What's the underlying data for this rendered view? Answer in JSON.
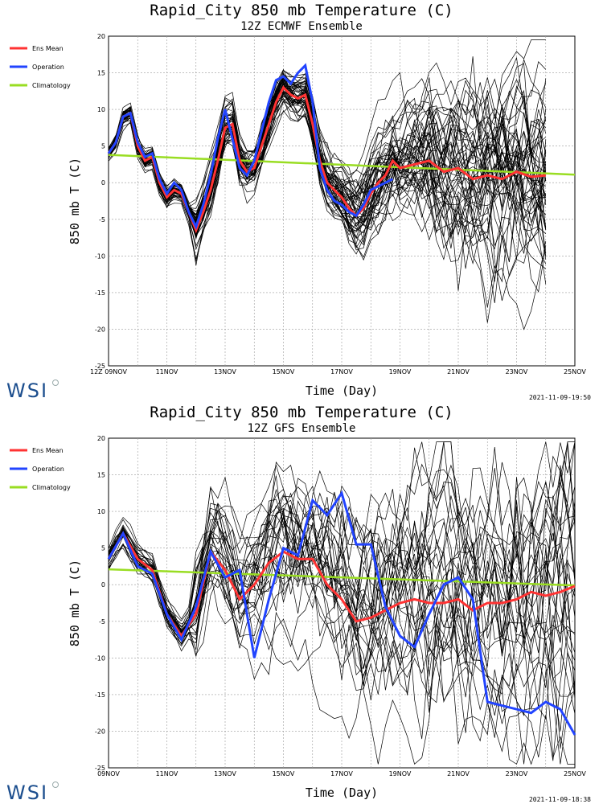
{
  "branding": {
    "logo_text": "WSI",
    "logo_color": "#1c4e8e"
  },
  "chart_data": [
    {
      "type": "line",
      "title": "Rapid_City 850 mb Temperature (C)",
      "subtitle": "12Z ECMWF Ensemble",
      "xlabel": "Time (Day)",
      "ylabel": "850 mb T (C)",
      "timestamp": "2021-11-09-19:50",
      "ylim": [
        -25,
        20
      ],
      "yticks": [
        20,
        15,
        10,
        5,
        0,
        -5,
        -10,
        -15,
        -20,
        -25
      ],
      "xlim_days": [
        0,
        16
      ],
      "xtick_labels": [
        "12Z 09NOV",
        "11NOV",
        "13NOV",
        "15NOV",
        "17NOV",
        "19NOV",
        "21NOV",
        "23NOV",
        "25NOV"
      ],
      "grid": true,
      "legend_position": "left",
      "legend": [
        {
          "name": "Ens Mean",
          "color": "#ff3333"
        },
        {
          "name": "Operation",
          "color": "#2244ff"
        },
        {
          "name": "Climatology",
          "color": "#99dd22"
        }
      ],
      "ensemble_members": 51,
      "ensemble_color": "#000000",
      "ens_mean": {
        "x": [
          0,
          0.25,
          0.5,
          0.75,
          1,
          1.25,
          1.5,
          1.75,
          2,
          2.25,
          2.5,
          2.75,
          3,
          3.25,
          3.5,
          3.75,
          4,
          4.25,
          4.5,
          4.75,
          5,
          5.25,
          5.5,
          5.75,
          6,
          6.25,
          6.5,
          6.75,
          7,
          7.25,
          7.5,
          7.75,
          8,
          8.25,
          8.5,
          8.75,
          9,
          9.25,
          9.5,
          9.75,
          10,
          10.5,
          11,
          11.5,
          12,
          12.5,
          13,
          13.5,
          14,
          14.5,
          15
        ],
        "y": [
          4,
          5.5,
          9,
          9.5,
          5,
          3,
          3.5,
          0,
          -2,
          -1,
          -1.5,
          -4,
          -6.5,
          -4,
          -1,
          3,
          7.5,
          8,
          3,
          1.5,
          2,
          5,
          8,
          11,
          13,
          12,
          11.5,
          12,
          8,
          3,
          0,
          -1,
          -2,
          -3.5,
          -4.5,
          -3.5,
          -1.5,
          0,
          1,
          3,
          2,
          2.5,
          3,
          1.5,
          2,
          0.5,
          1,
          0.5,
          1.5,
          0.8,
          1
        ]
      },
      "operation": {
        "x": [
          0,
          0.25,
          0.5,
          0.75,
          1,
          1.25,
          1.5,
          1.75,
          2,
          2.25,
          2.5,
          2.75,
          3,
          3.25,
          3.5,
          3.75,
          4,
          4.25,
          4.5,
          4.75,
          5,
          5.25,
          5.5,
          5.75,
          6,
          6.25,
          6.5,
          6.75,
          7,
          7.25,
          7.5,
          7.75,
          8,
          8.25,
          8.5,
          8.75,
          9,
          9.25,
          9.5,
          9.75
        ],
        "y": [
          4,
          5.5,
          9,
          9.5,
          5.5,
          3.5,
          4,
          0.5,
          -1.5,
          0,
          -1,
          -4,
          -6,
          -3,
          1,
          6,
          10,
          6,
          2,
          1,
          3,
          7,
          11,
          14,
          14.5,
          13.5,
          15,
          16,
          11,
          2,
          -1,
          -2.5,
          -3,
          -4,
          -4.5,
          -3,
          -1,
          -0.5,
          0,
          0.5
        ]
      },
      "climatology": {
        "x": [
          0,
          16
        ],
        "y": [
          3.8,
          1.1
        ]
      }
    },
    {
      "type": "line",
      "title": "Rapid_City 850 mb Temperature (C)",
      "subtitle": "12Z GFS Ensemble",
      "xlabel": "Time (Day)",
      "ylabel": "850 mb T (C)",
      "timestamp": "2021-11-09-18:38",
      "ylim": [
        -25,
        20
      ],
      "yticks": [
        20,
        15,
        10,
        5,
        0,
        -5,
        -10,
        -15,
        -20,
        -25
      ],
      "xlim_days": [
        0,
        16
      ],
      "xtick_labels": [
        "09NOV",
        "11NOV",
        "13NOV",
        "15NOV",
        "17NOV",
        "19NOV",
        "21NOV",
        "23NOV",
        "25NOV"
      ],
      "grid": true,
      "legend_position": "left",
      "legend": [
        {
          "name": "Ens Mean",
          "color": "#ff3333"
        },
        {
          "name": "Operation",
          "color": "#2244ff"
        },
        {
          "name": "Climatology",
          "color": "#99dd22"
        }
      ],
      "ensemble_members": 31,
      "ensemble_color": "#000000",
      "ens_mean": {
        "x": [
          0,
          0.5,
          1,
          1.5,
          2,
          2.5,
          3,
          3.5,
          4,
          4.5,
          5,
          5.5,
          6,
          6.5,
          7,
          7.5,
          8,
          8.5,
          9,
          9.5,
          10,
          10.5,
          11,
          11.5,
          12,
          12.5,
          13,
          13.5,
          14,
          14.5,
          15,
          15.5,
          16
        ],
        "y": [
          3.5,
          7,
          3.5,
          2,
          -4,
          -7,
          -4,
          4.5,
          2,
          -2,
          0,
          3,
          4.5,
          3.5,
          3.5,
          0,
          -2,
          -5,
          -4.5,
          -3.5,
          -2.5,
          -2,
          -2.5,
          -2.5,
          -2,
          -3.5,
          -2.5,
          -2.5,
          -2,
          -1,
          -1.5,
          -1,
          -0.2
        ]
      },
      "operation": {
        "x": [
          0,
          0.5,
          1,
          1.5,
          2,
          2.5,
          3,
          3.5,
          4,
          4.5,
          5,
          5.5,
          6,
          6.5,
          7,
          7.5,
          8,
          8.5,
          9,
          9.5,
          10,
          10.5,
          11,
          11.5,
          12,
          12.5,
          13,
          13.5,
          14,
          14.5,
          15,
          15.5,
          16
        ],
        "y": [
          3.5,
          7,
          2.5,
          1.5,
          -4,
          -7.5,
          -3,
          4.5,
          1,
          2,
          -10,
          -2,
          5,
          4,
          11.5,
          9.5,
          12.5,
          5.5,
          5.5,
          -3,
          -7,
          -8.5,
          -4,
          0,
          1,
          -2,
          -16,
          -16.5,
          -17,
          -17.5,
          -16,
          -17,
          -20.5
        ]
      },
      "climatology": {
        "x": [
          0,
          16
        ],
        "y": [
          2.1,
          -0.1
        ]
      }
    }
  ]
}
